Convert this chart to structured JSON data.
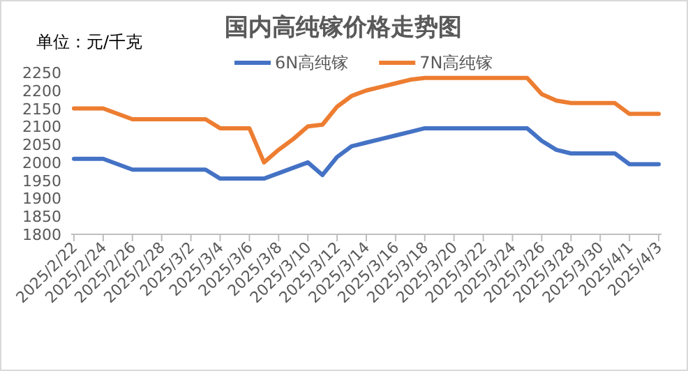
{
  "chart_data": {
    "type": "line",
    "title": "国内高纯镓价格走势图",
    "ylabel": "单位：元/千克",
    "categories": [
      "2025/2/22",
      null,
      "2025/2/24",
      null,
      "2025/2/26",
      null,
      "2025/2/28",
      null,
      "2025/3/2",
      null,
      "2025/3/4",
      null,
      "2025/3/6",
      null,
      "2025/3/8",
      null,
      "2025/3/10",
      null,
      "2025/3/12",
      null,
      "2025/3/14",
      null,
      "2025/3/16",
      null,
      "2025/3/18",
      null,
      "2025/3/20",
      null,
      "2025/3/22",
      null,
      "2025/3/24",
      null,
      "2025/3/26",
      null,
      "2025/3/28",
      null,
      "2025/3/30",
      null,
      "2025/4/1",
      null,
      "2025/4/3"
    ],
    "series": [
      {
        "name": "6N高纯镓",
        "color": "#4472c4",
        "values": [
          2010,
          2010,
          2010,
          1995,
          1980,
          1980,
          1980,
          1980,
          1980,
          1980,
          1955,
          1955,
          1955,
          1955,
          1970,
          1985,
          2000,
          1965,
          2015,
          2045,
          2055,
          2065,
          2075,
          2085,
          2095,
          2095,
          2095,
          2095,
          2095,
          2095,
          2095,
          2095,
          2060,
          2035,
          2025,
          2025,
          2025,
          2025,
          1995,
          1995,
          1995
        ]
      },
      {
        "name": "7N高纯镓",
        "color": "#ed7d31",
        "values": [
          2150,
          2150,
          2150,
          2135,
          2120,
          2120,
          2120,
          2120,
          2120,
          2120,
          2095,
          2095,
          2095,
          2000,
          2035,
          2065,
          2100,
          2105,
          2155,
          2185,
          2200,
          2210,
          2220,
          2230,
          2235,
          2235,
          2235,
          2235,
          2235,
          2235,
          2235,
          2235,
          2190,
          2172,
          2165,
          2165,
          2165,
          2165,
          2135,
          2135,
          2135
        ]
      }
    ],
    "ylim": [
      1800,
      2250
    ],
    "yticks": [
      1800,
      1850,
      1900,
      1950,
      2000,
      2050,
      2100,
      2150,
      2200,
      2250
    ],
    "legend": "top",
    "grid": false,
    "marker": "none",
    "line_style": "solid"
  }
}
